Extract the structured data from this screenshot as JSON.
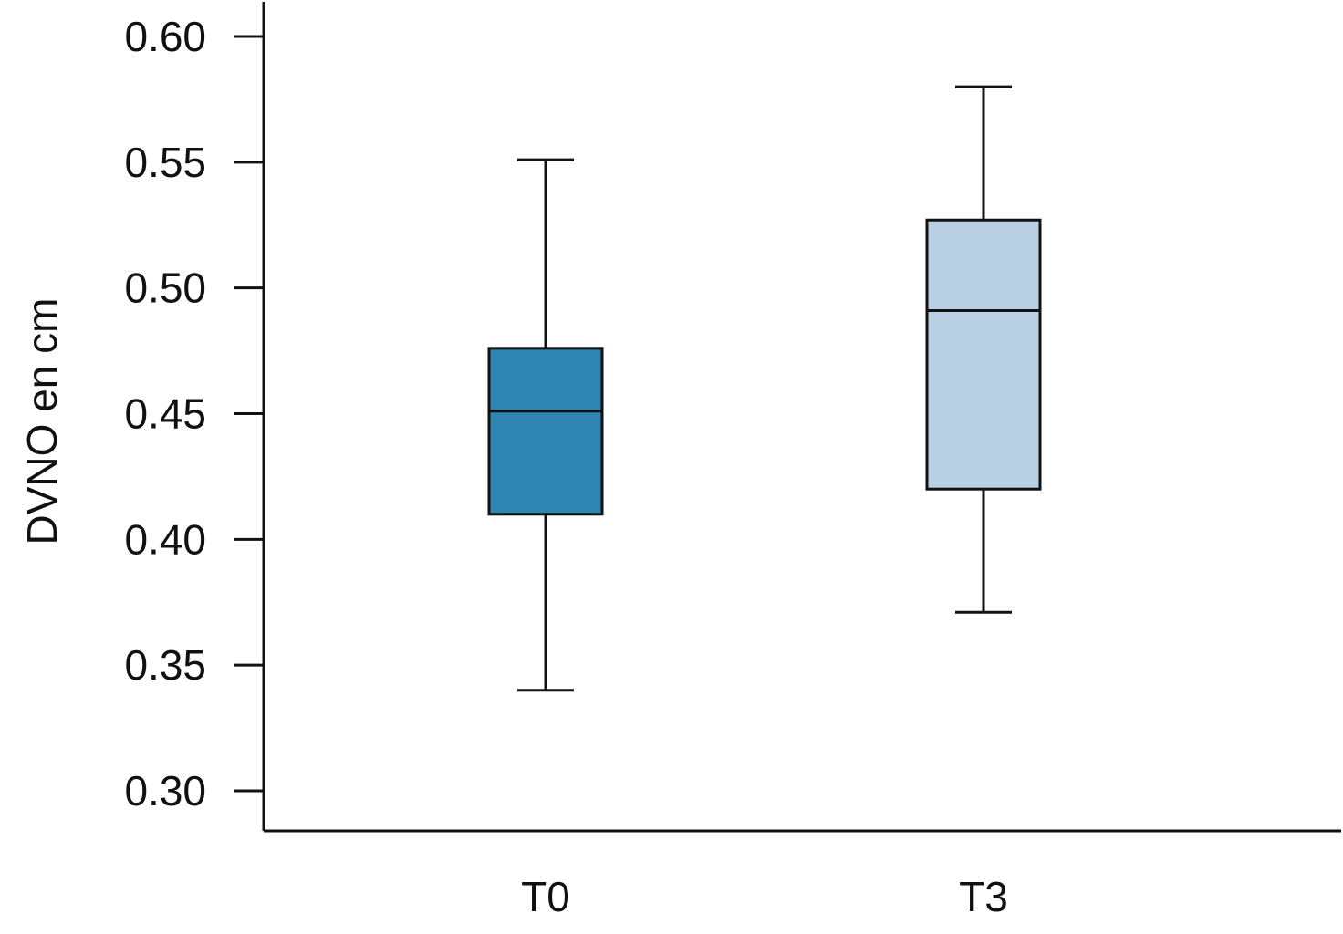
{
  "chart_data": {
    "type": "box",
    "title": "",
    "xlabel": "",
    "ylabel": "DVNO en cm",
    "ylim": [
      0.284,
      0.615
    ],
    "yticks": [
      0.3,
      0.35,
      0.4,
      0.45,
      0.5,
      0.55,
      0.6
    ],
    "ytick_labels": [
      "0.30",
      "0.35",
      "0.40",
      "0.45",
      "0.50",
      "0.55",
      "0.60"
    ],
    "grid": false,
    "categories": [
      "T0",
      "T3"
    ],
    "boxes": [
      {
        "category": "T0",
        "whisker_low": 0.34,
        "q1": 0.41,
        "median": 0.451,
        "q3": 0.476,
        "whisker_high": 0.551,
        "color": "#2e86b5"
      },
      {
        "category": "T3",
        "whisker_low": 0.371,
        "q1": 0.42,
        "median": 0.491,
        "q3": 0.527,
        "whisker_high": 0.58,
        "color": "#b9cfe4"
      }
    ]
  }
}
